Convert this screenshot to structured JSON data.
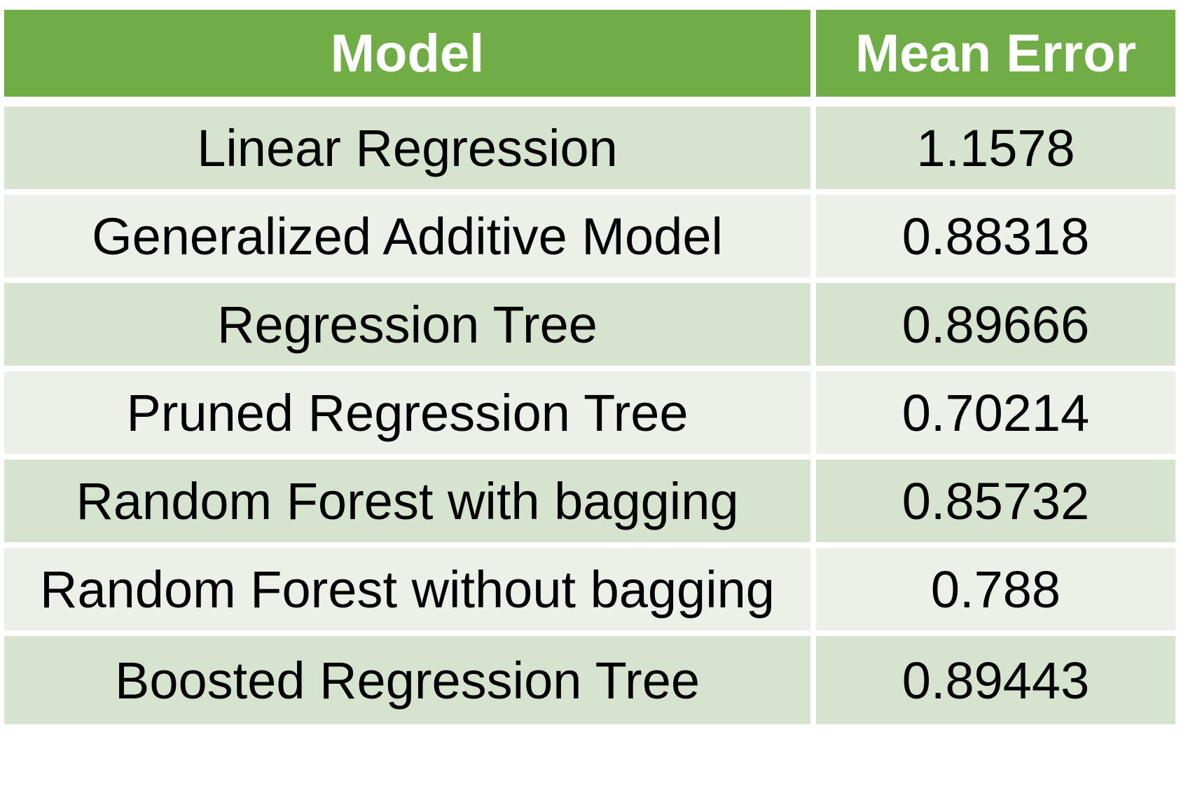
{
  "chart_data": {
    "type": "table",
    "columns": [
      "Model",
      "Mean Error"
    ],
    "rows": [
      [
        "Linear Regression",
        "1.1578"
      ],
      [
        "Generalized Additive Model",
        "0.88318"
      ],
      [
        "Regression Tree",
        "0.89666"
      ],
      [
        "Pruned Regression Tree",
        "0.70214"
      ],
      [
        "Random Forest with bagging",
        "0.85732"
      ],
      [
        "Random Forest without bagging",
        "0.788"
      ],
      [
        "Boosted Regression Tree",
        "0.89443"
      ]
    ],
    "colors": {
      "header_bg": "#70ad47",
      "header_text": "#ffffff",
      "row_band_dark": "#d5e3cf",
      "row_band_light": "#ebf1e9"
    }
  }
}
